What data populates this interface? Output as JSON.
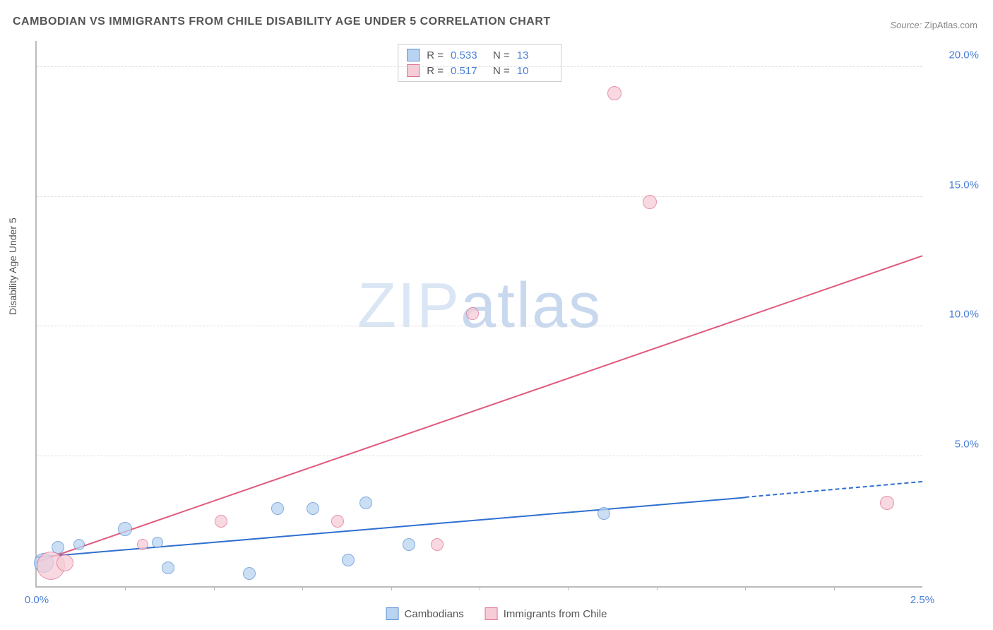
{
  "title": "CAMBODIAN VS IMMIGRANTS FROM CHILE DISABILITY AGE UNDER 5 CORRELATION CHART",
  "source_label": "Source:",
  "source_value": "ZipAtlas.com",
  "ylabel": "Disability Age Under 5",
  "watermark": "ZIPatlas",
  "chart": {
    "type": "scatter",
    "xlim": [
      0,
      2.5
    ],
    "ylim": [
      0,
      21
    ],
    "y_ticks": [
      5.0,
      10.0,
      15.0,
      20.0
    ],
    "y_tick_labels": [
      "5.0%",
      "10.0%",
      "15.0%",
      "20.0%"
    ],
    "x_ticks": [
      0.0,
      2.5
    ],
    "x_tick_labels": [
      "0.0%",
      "2.5%"
    ],
    "x_minor_ticks": [
      0.25,
      0.5,
      0.75,
      1.0,
      1.25,
      1.5,
      1.75,
      2.0,
      2.25
    ],
    "background_color": "#ffffff",
    "grid_color": "#dddddd"
  },
  "series": [
    {
      "name": "Cambodians",
      "fill": "#b9d4f1",
      "stroke": "#5b8fd6",
      "line_color": "#2f6fd0",
      "r_value": "0.533",
      "n_value": "13",
      "points": [
        {
          "x": 0.02,
          "y": 0.9,
          "r": 14
        },
        {
          "x": 0.06,
          "y": 1.5,
          "r": 9
        },
        {
          "x": 0.12,
          "y": 1.6,
          "r": 8
        },
        {
          "x": 0.25,
          "y": 2.2,
          "r": 10
        },
        {
          "x": 0.34,
          "y": 1.7,
          "r": 8
        },
        {
          "x": 0.37,
          "y": 0.7,
          "r": 9
        },
        {
          "x": 0.6,
          "y": 0.5,
          "r": 9
        },
        {
          "x": 0.68,
          "y": 3.0,
          "r": 9
        },
        {
          "x": 0.78,
          "y": 3.0,
          "r": 9
        },
        {
          "x": 0.88,
          "y": 1.0,
          "r": 9
        },
        {
          "x": 0.93,
          "y": 3.2,
          "r": 9
        },
        {
          "x": 1.05,
          "y": 1.6,
          "r": 9
        },
        {
          "x": 1.6,
          "y": 2.8,
          "r": 9
        }
      ],
      "trend": {
        "x1": 0.0,
        "y1": 1.1,
        "x2": 2.0,
        "y2": 3.4,
        "dash_x2": 2.5,
        "dash_y2": 4.0
      }
    },
    {
      "name": "Immigrants from Chile",
      "fill": "#f6cdd7",
      "stroke": "#e06f8f",
      "line_color": "#e05a7d",
      "r_value": "0.517",
      "n_value": "10",
      "points": [
        {
          "x": 0.04,
          "y": 0.8,
          "r": 20
        },
        {
          "x": 0.08,
          "y": 0.9,
          "r": 12
        },
        {
          "x": 0.3,
          "y": 1.6,
          "r": 8
        },
        {
          "x": 0.52,
          "y": 2.5,
          "r": 9
        },
        {
          "x": 0.85,
          "y": 2.5,
          "r": 9
        },
        {
          "x": 1.13,
          "y": 1.6,
          "r": 9
        },
        {
          "x": 1.23,
          "y": 10.5,
          "r": 9
        },
        {
          "x": 1.63,
          "y": 19.0,
          "r": 10
        },
        {
          "x": 1.73,
          "y": 14.8,
          "r": 10
        },
        {
          "x": 2.4,
          "y": 3.2,
          "r": 10
        }
      ],
      "trend": {
        "x1": 0.0,
        "y1": 0.9,
        "x2": 2.5,
        "y2": 12.7
      }
    }
  ],
  "bottom_legend": [
    {
      "label": "Cambodians",
      "fill": "#b9d4f1",
      "stroke": "#5b8fd6"
    },
    {
      "label": "Immigrants from Chile",
      "fill": "#f6cdd7",
      "stroke": "#e06f8f"
    }
  ]
}
